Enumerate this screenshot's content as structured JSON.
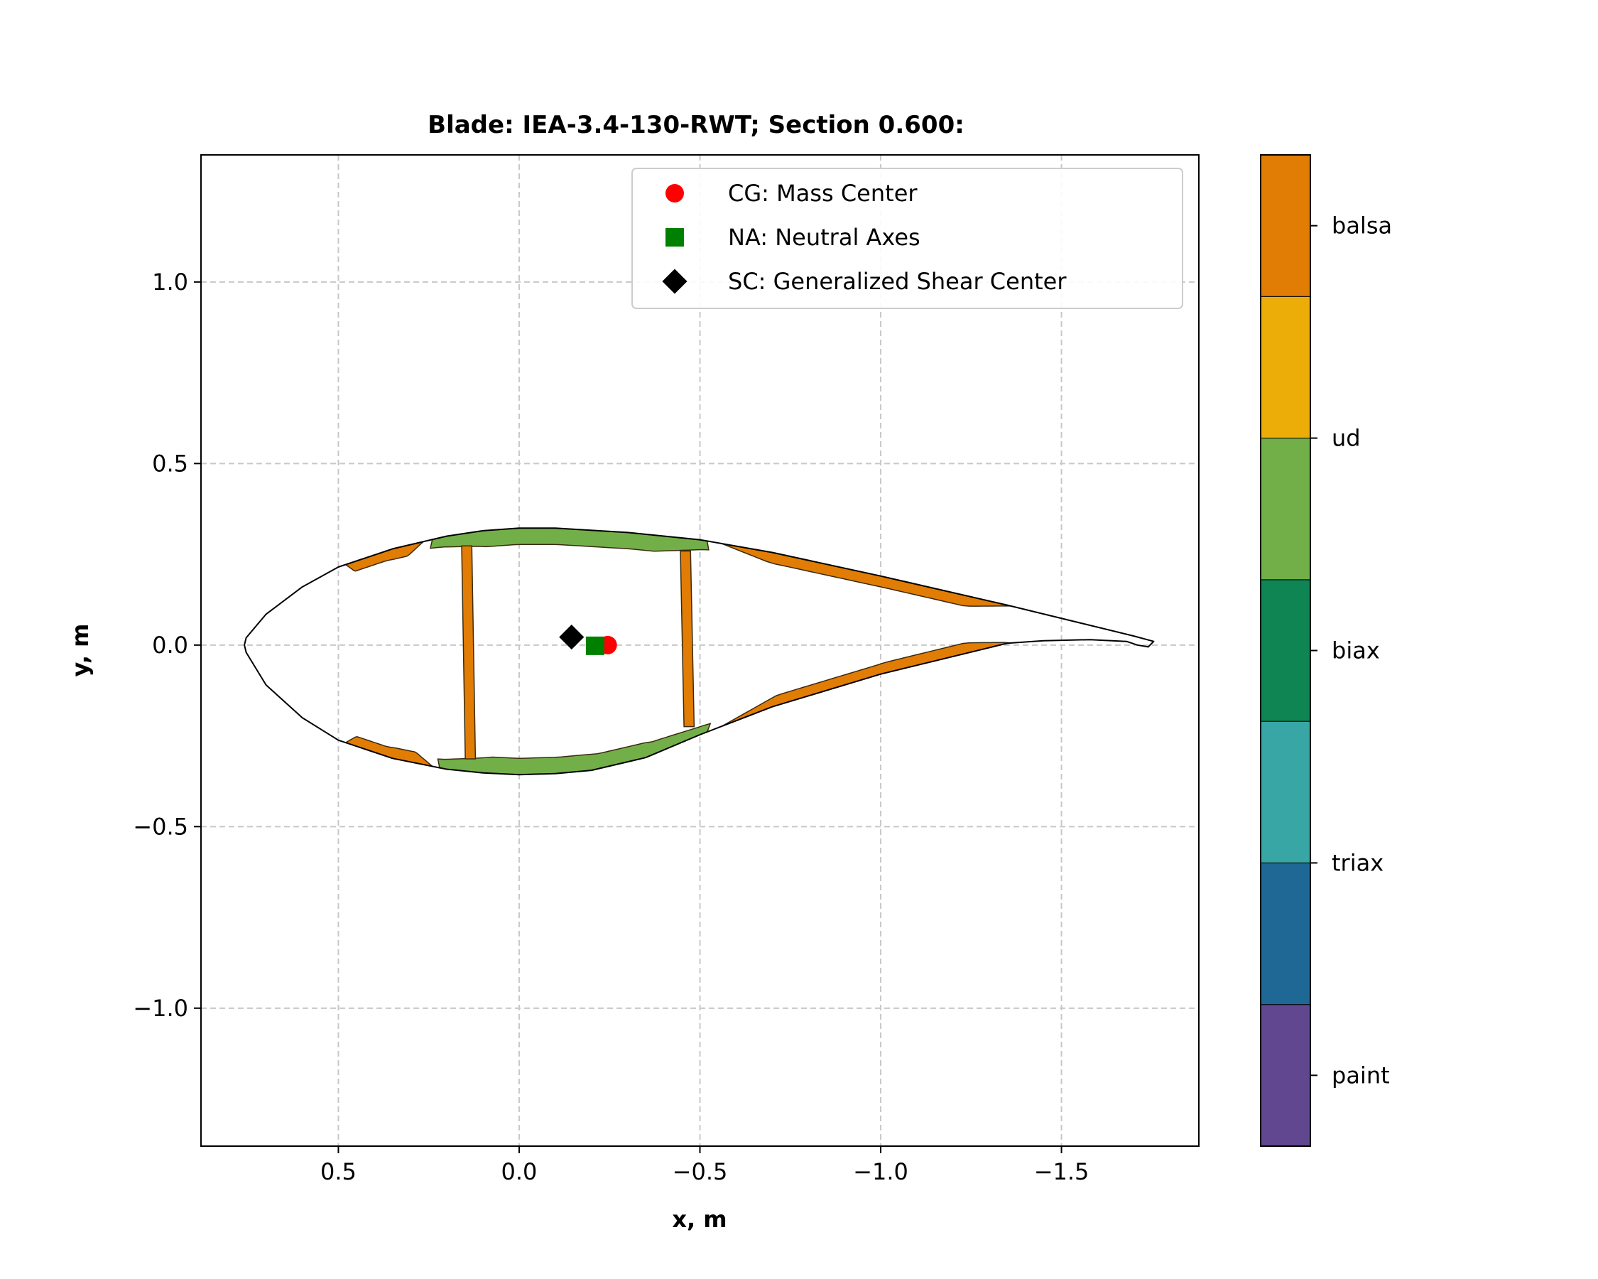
{
  "chart_data": {
    "type": "scatter",
    "title": "Blade: IEA-3.4-130-RWT; Section 0.600:",
    "xlabel": "x, m",
    "ylabel": "y, m",
    "xlim": [
      0.88,
      -1.88
    ],
    "ylim": [
      -1.38,
      1.35
    ],
    "x_ticks": [
      0.5,
      0.0,
      -0.5,
      -1.0,
      -1.5
    ],
    "x_tick_labels": [
      "0.5",
      "0.0",
      "−0.5",
      "−1.0",
      "−1.5"
    ],
    "y_ticks": [
      1.0,
      0.5,
      0.0,
      -0.5,
      -1.0
    ],
    "y_tick_labels": [
      "1.0",
      "0.5",
      "0.0",
      "−0.5",
      "−1.0"
    ],
    "grid": true,
    "legend_position": "upper right",
    "points": [
      {
        "name": "CG: Mass Center",
        "x": -0.245,
        "y": 0.0,
        "marker": "circle",
        "color": "#ff0000"
      },
      {
        "name": "NA: Neutral Axes",
        "x": -0.21,
        "y": -0.002,
        "marker": "square",
        "color": "#008000"
      },
      {
        "name": "SC: Generalized Shear Center",
        "x": -0.145,
        "y": 0.022,
        "marker": "diamond",
        "color": "#000000"
      }
    ],
    "airfoil": {
      "upper": [
        [
          -1.755,
          0.01
        ],
        [
          -1.7,
          0.025
        ],
        [
          -1.35,
          0.11
        ],
        [
          -1.0,
          0.19
        ],
        [
          -0.7,
          0.255
        ],
        [
          -0.5,
          0.29
        ],
        [
          -0.3,
          0.31
        ],
        [
          -0.1,
          0.322
        ],
        [
          0.0,
          0.322
        ],
        [
          0.1,
          0.315
        ],
        [
          0.2,
          0.3
        ],
        [
          0.35,
          0.265
        ],
        [
          0.5,
          0.215
        ],
        [
          0.6,
          0.16
        ],
        [
          0.7,
          0.085
        ],
        [
          0.755,
          0.02
        ],
        [
          0.76,
          0.0
        ]
      ],
      "lower": [
        [
          0.76,
          0.0
        ],
        [
          0.755,
          -0.02
        ],
        [
          0.7,
          -0.11
        ],
        [
          0.6,
          -0.2
        ],
        [
          0.5,
          -0.262
        ],
        [
          0.35,
          -0.312
        ],
        [
          0.2,
          -0.342
        ],
        [
          0.1,
          -0.352
        ],
        [
          0.0,
          -0.357
        ],
        [
          -0.1,
          -0.354
        ],
        [
          -0.2,
          -0.345
        ],
        [
          -0.35,
          -0.31
        ],
        [
          -0.5,
          -0.247
        ],
        [
          -0.7,
          -0.17
        ],
        [
          -1.0,
          -0.08
        ],
        [
          -1.35,
          0.005
        ],
        [
          -1.45,
          0.012
        ],
        [
          -1.58,
          0.015
        ],
        [
          -1.68,
          0.01
        ],
        [
          -1.71,
          0.0
        ],
        [
          -1.74,
          -0.005
        ],
        [
          -1.755,
          0.01
        ]
      ],
      "webs": [
        {
          "x_top": 0.145,
          "x_bottom": 0.135,
          "material": "balsa"
        },
        {
          "x_top": -0.46,
          "x_bottom": -0.47,
          "material": "balsa"
        }
      ],
      "regions": [
        {
          "surface": "upper",
          "x_start": 0.48,
          "x_end": 0.265,
          "material": "balsa"
        },
        {
          "surface": "upper",
          "x_start": 0.24,
          "x_end": -0.52,
          "material": "ud"
        },
        {
          "surface": "upper",
          "x_start": -0.56,
          "x_end": -1.36,
          "material": "balsa"
        },
        {
          "surface": "lower",
          "x_start": 0.48,
          "x_end": 0.24,
          "material": "balsa"
        },
        {
          "surface": "lower",
          "x_start": 0.22,
          "x_end": -0.52,
          "material": "ud"
        },
        {
          "surface": "lower",
          "x_start": -0.56,
          "x_end": -1.36,
          "material": "balsa"
        }
      ]
    },
    "colorbar": {
      "materials": [
        {
          "label": "paint",
          "color": "#60478f"
        },
        {
          "label": "",
          "color": "#1f6896"
        },
        {
          "label": "triax",
          "color": "#38a6a5"
        },
        {
          "label": "",
          "color": "#0f8554"
        },
        {
          "label": "biax",
          "color": "#0f8554"
        },
        {
          "label": "",
          "color": "#73af48"
        },
        {
          "label": "ud",
          "color": "#73af48"
        },
        {
          "label": "",
          "color": "#edad08"
        },
        {
          "label": "balsa",
          "color": "#e17c05"
        }
      ],
      "bands": [
        "#60478f",
        "#1f6896",
        "#38a6a5",
        "#0f8554",
        "#73af48",
        "#edad08",
        "#e17c05"
      ],
      "tick_labels": [
        "paint",
        "triax",
        "biax",
        "ud",
        "balsa"
      ],
      "tick_positions": [
        0.5,
        2.0,
        3.5,
        5.0,
        6.5
      ]
    },
    "material_colors": {
      "balsa": "#e17c05",
      "ud": "#73af48"
    }
  }
}
